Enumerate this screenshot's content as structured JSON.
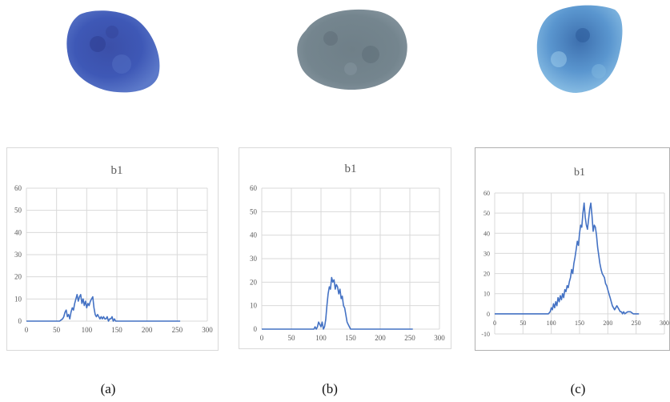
{
  "figure": {
    "captions": [
      "(a)",
      "(b)",
      "(c)"
    ]
  },
  "colors": {
    "line": "#4472c4",
    "grid": "#d9d9d9",
    "axis_text": "#595959",
    "title_text": "#595959"
  },
  "chart_data": [
    {
      "type": "line",
      "title": "b1",
      "xlabel": "",
      "ylabel": "",
      "xlim": [
        0,
        300
      ],
      "ylim": [
        0,
        60
      ],
      "xticks": [
        0,
        50,
        100,
        150,
        200,
        250,
        300
      ],
      "yticks": [
        0,
        10,
        20,
        30,
        40,
        50,
        60
      ],
      "grid": true,
      "series": [
        {
          "x": [
            0,
            55,
            60,
            62,
            64,
            66,
            68,
            70,
            72,
            74,
            76,
            78,
            80,
            82,
            84,
            86,
            88,
            90,
            92,
            94,
            96,
            98,
            100,
            102,
            104,
            106,
            108,
            110,
            112,
            114,
            116,
            118,
            120,
            122,
            124,
            126,
            128,
            130,
            132,
            134,
            136,
            138,
            140,
            142,
            144,
            146,
            148,
            255
          ],
          "y": [
            0,
            0,
            1,
            2,
            4,
            5,
            2,
            3,
            1,
            4,
            6,
            5,
            8,
            10,
            12,
            9,
            11,
            12,
            8,
            10,
            7,
            9,
            6,
            8,
            7,
            9,
            10,
            11,
            6,
            3,
            2,
            3,
            2,
            1,
            2,
            1,
            2,
            1,
            1,
            2,
            0,
            1,
            1,
            2,
            0,
            1,
            0,
            0
          ]
        }
      ]
    },
    {
      "type": "line",
      "title": "b1",
      "xlabel": "",
      "ylabel": "",
      "xlim": [
        0,
        300
      ],
      "ylim": [
        0,
        60
      ],
      "xticks": [
        0,
        50,
        100,
        150,
        200,
        250,
        300
      ],
      "yticks": [
        0,
        10,
        20,
        30,
        40,
        50,
        60
      ],
      "grid": true,
      "series": [
        {
          "x": [
            0,
            88,
            90,
            92,
            94,
            96,
            98,
            100,
            102,
            104,
            106,
            108,
            110,
            112,
            114,
            116,
            118,
            120,
            122,
            124,
            126,
            128,
            130,
            132,
            134,
            136,
            138,
            140,
            142,
            144,
            146,
            148,
            150,
            152,
            255
          ],
          "y": [
            0,
            0,
            1,
            0,
            1,
            3,
            2,
            1,
            3,
            0,
            1,
            4,
            10,
            15,
            18,
            17,
            22,
            20,
            21,
            17,
            19,
            18,
            15,
            17,
            13,
            14,
            10,
            9,
            6,
            3,
            2,
            1,
            0,
            0,
            0
          ]
        }
      ]
    },
    {
      "type": "line",
      "title": "b1",
      "xlabel": "",
      "ylabel": "",
      "xlim": [
        0,
        300
      ],
      "ylim": [
        -10,
        60
      ],
      "xticks": [
        0,
        50,
        100,
        150,
        200,
        250,
        300
      ],
      "yticks": [
        -10,
        0,
        10,
        20,
        30,
        40,
        50,
        60
      ],
      "grid": true,
      "series": [
        {
          "x": [
            0,
            95,
            98,
            100,
            102,
            104,
            106,
            108,
            110,
            112,
            114,
            116,
            118,
            120,
            122,
            124,
            126,
            128,
            130,
            132,
            134,
            136,
            138,
            140,
            142,
            144,
            146,
            148,
            150,
            152,
            154,
            156,
            158,
            160,
            162,
            164,
            166,
            168,
            170,
            172,
            174,
            176,
            178,
            180,
            182,
            184,
            186,
            188,
            190,
            192,
            194,
            196,
            198,
            200,
            202,
            204,
            206,
            208,
            210,
            212,
            214,
            216,
            218,
            220,
            222,
            224,
            226,
            228,
            230,
            235,
            240,
            245,
            250,
            255
          ],
          "y": [
            0,
            0,
            1,
            3,
            2,
            5,
            3,
            6,
            4,
            8,
            6,
            9,
            7,
            10,
            8,
            12,
            11,
            14,
            13,
            16,
            18,
            22,
            20,
            25,
            28,
            32,
            36,
            34,
            40,
            44,
            43,
            50,
            55,
            48,
            44,
            42,
            47,
            52,
            55,
            49,
            41,
            44,
            43,
            39,
            33,
            29,
            25,
            22,
            20,
            19,
            18,
            15,
            14,
            12,
            10,
            8,
            6,
            4,
            3,
            2,
            3,
            4,
            3,
            2,
            1,
            1,
            0,
            1,
            0,
            1,
            1,
            0,
            0,
            0
          ]
        }
      ]
    }
  ]
}
